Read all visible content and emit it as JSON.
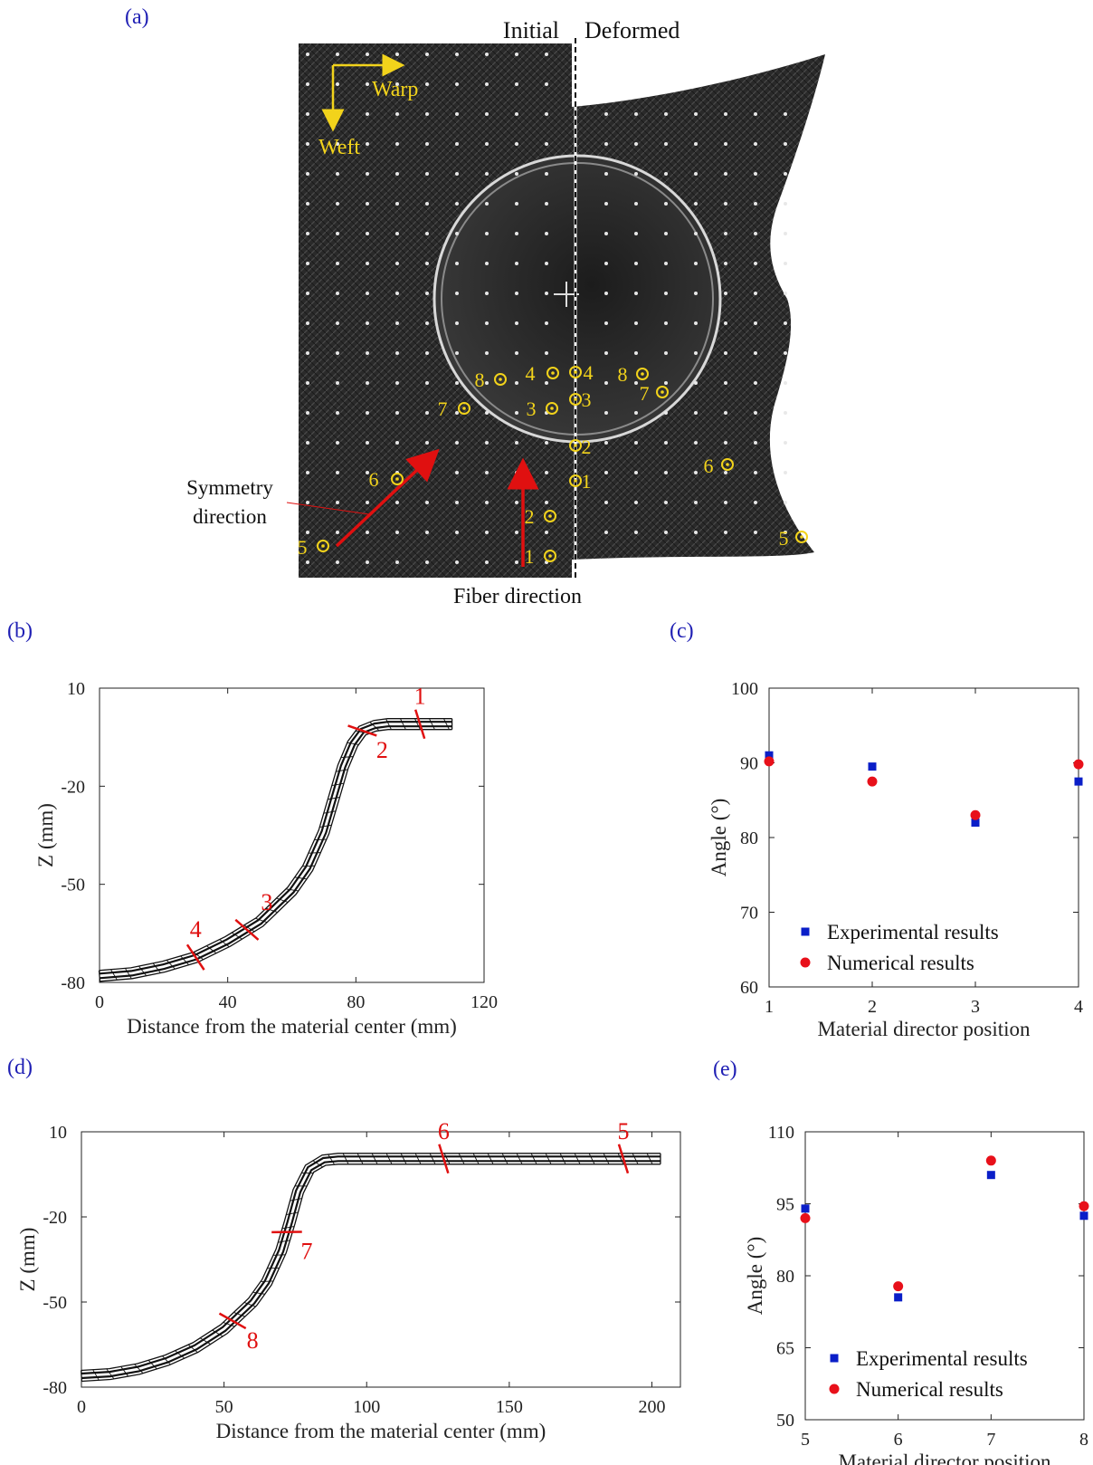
{
  "panels": {
    "a": "(a)",
    "b": "(b)",
    "c": "(c)",
    "d": "(d)",
    "e": "(e)"
  },
  "photo": {
    "initial_label": "Initial",
    "deformed_label": "Deformed",
    "warp_label": "Warp",
    "weft_label": "Weft",
    "symmetry_label_line1": "Symmetry",
    "symmetry_label_line2": "direction",
    "fiber_label": "Fiber direction",
    "marker_labels": [
      "1",
      "2",
      "3",
      "4",
      "5",
      "6",
      "7",
      "8"
    ],
    "colors": {
      "marker": "#f2d31b",
      "arrow": "#e01010",
      "fabric": "#262626"
    }
  },
  "chart_data": [
    {
      "id": "b",
      "type": "line",
      "xlabel": "Distance from the material center (mm)",
      "ylabel": "Z (mm)",
      "xlim": [
        0,
        120
      ],
      "ylim": [
        -80,
        10
      ],
      "xticks": [
        "0",
        "40",
        "80",
        "120"
      ],
      "yticks": [
        "10",
        "-20",
        "-50",
        "-80"
      ],
      "profile": {
        "x": [
          0,
          10,
          20,
          30,
          40,
          50,
          60,
          65,
          70,
          73,
          76,
          79,
          82,
          86,
          90,
          100,
          110
        ],
        "y": [
          -78,
          -77.2,
          -75.2,
          -72.3,
          -67.5,
          -61.5,
          -52,
          -45,
          -34,
          -24,
          -14,
          -7,
          -3,
          -1.5,
          -1,
          -1,
          -1
        ]
      },
      "markers": [
        {
          "label": "1",
          "x": 100
        },
        {
          "label": "2",
          "x": 82
        },
        {
          "label": "3",
          "x": 46
        },
        {
          "label": "4",
          "x": 30
        }
      ]
    },
    {
      "id": "c",
      "type": "scatter",
      "xlabel": "Material director position",
      "ylabel": "Angle (°)",
      "xlim": [
        1,
        4
      ],
      "ylim": [
        60,
        100
      ],
      "xticks": [
        "1",
        "2",
        "3",
        "4"
      ],
      "yticks": [
        "100",
        "90",
        "80",
        "70",
        "60"
      ],
      "series": [
        {
          "name": "Experimental results",
          "marker": "square",
          "color": "#0a1ec8",
          "x": [
            1,
            2,
            3,
            4
          ],
          "y": [
            91,
            89.5,
            82,
            87.5
          ]
        },
        {
          "name": "Numerical results",
          "marker": "circle",
          "color": "#e8101a",
          "x": [
            1,
            2,
            3,
            4
          ],
          "y": [
            90.2,
            87.5,
            83,
            89.8
          ]
        }
      ],
      "legend": "bottom-left"
    },
    {
      "id": "d",
      "type": "line",
      "xlabel": "Distance from the material center (mm)",
      "ylabel": "Z (mm)",
      "xlim": [
        0,
        210
      ],
      "ylim": [
        -80,
        10
      ],
      "xticks": [
        "0",
        "50",
        "100",
        "150",
        "200"
      ],
      "yticks": [
        "10",
        "-20",
        "-50",
        "-80"
      ],
      "profile": {
        "x": [
          0,
          10,
          20,
          30,
          40,
          50,
          60,
          65,
          70,
          73,
          76,
          80,
          85,
          90,
          100,
          150,
          203
        ],
        "y": [
          -76,
          -75.4,
          -73.6,
          -70.5,
          -66,
          -59.5,
          -50,
          -43,
          -32,
          -22,
          -11,
          -3,
          0,
          0.5,
          0.5,
          0.5,
          0.5
        ]
      },
      "markers": [
        {
          "label": "5",
          "x": 190
        },
        {
          "label": "6",
          "x": 127
        },
        {
          "label": "7",
          "x": 72
        },
        {
          "label": "8",
          "x": 53
        }
      ]
    },
    {
      "id": "e",
      "type": "scatter",
      "xlabel": "Material director position",
      "ylabel": "Angle (°)",
      "xlim": [
        5,
        8
      ],
      "ylim": [
        50,
        110
      ],
      "xticks": [
        "5",
        "6",
        "7",
        "8"
      ],
      "yticks": [
        "110",
        "95",
        "80",
        "65",
        "50"
      ],
      "series": [
        {
          "name": "Experimental results",
          "marker": "square",
          "color": "#0a1ec8",
          "x": [
            5,
            6,
            7,
            8
          ],
          "y": [
            94,
            75.5,
            101,
            92.5
          ]
        },
        {
          "name": "Numerical results",
          "marker": "circle",
          "color": "#e8101a",
          "x": [
            5,
            6,
            7,
            8
          ],
          "y": [
            92,
            77.8,
            104,
            94.5
          ]
        }
      ],
      "legend": "bottom-left"
    }
  ]
}
